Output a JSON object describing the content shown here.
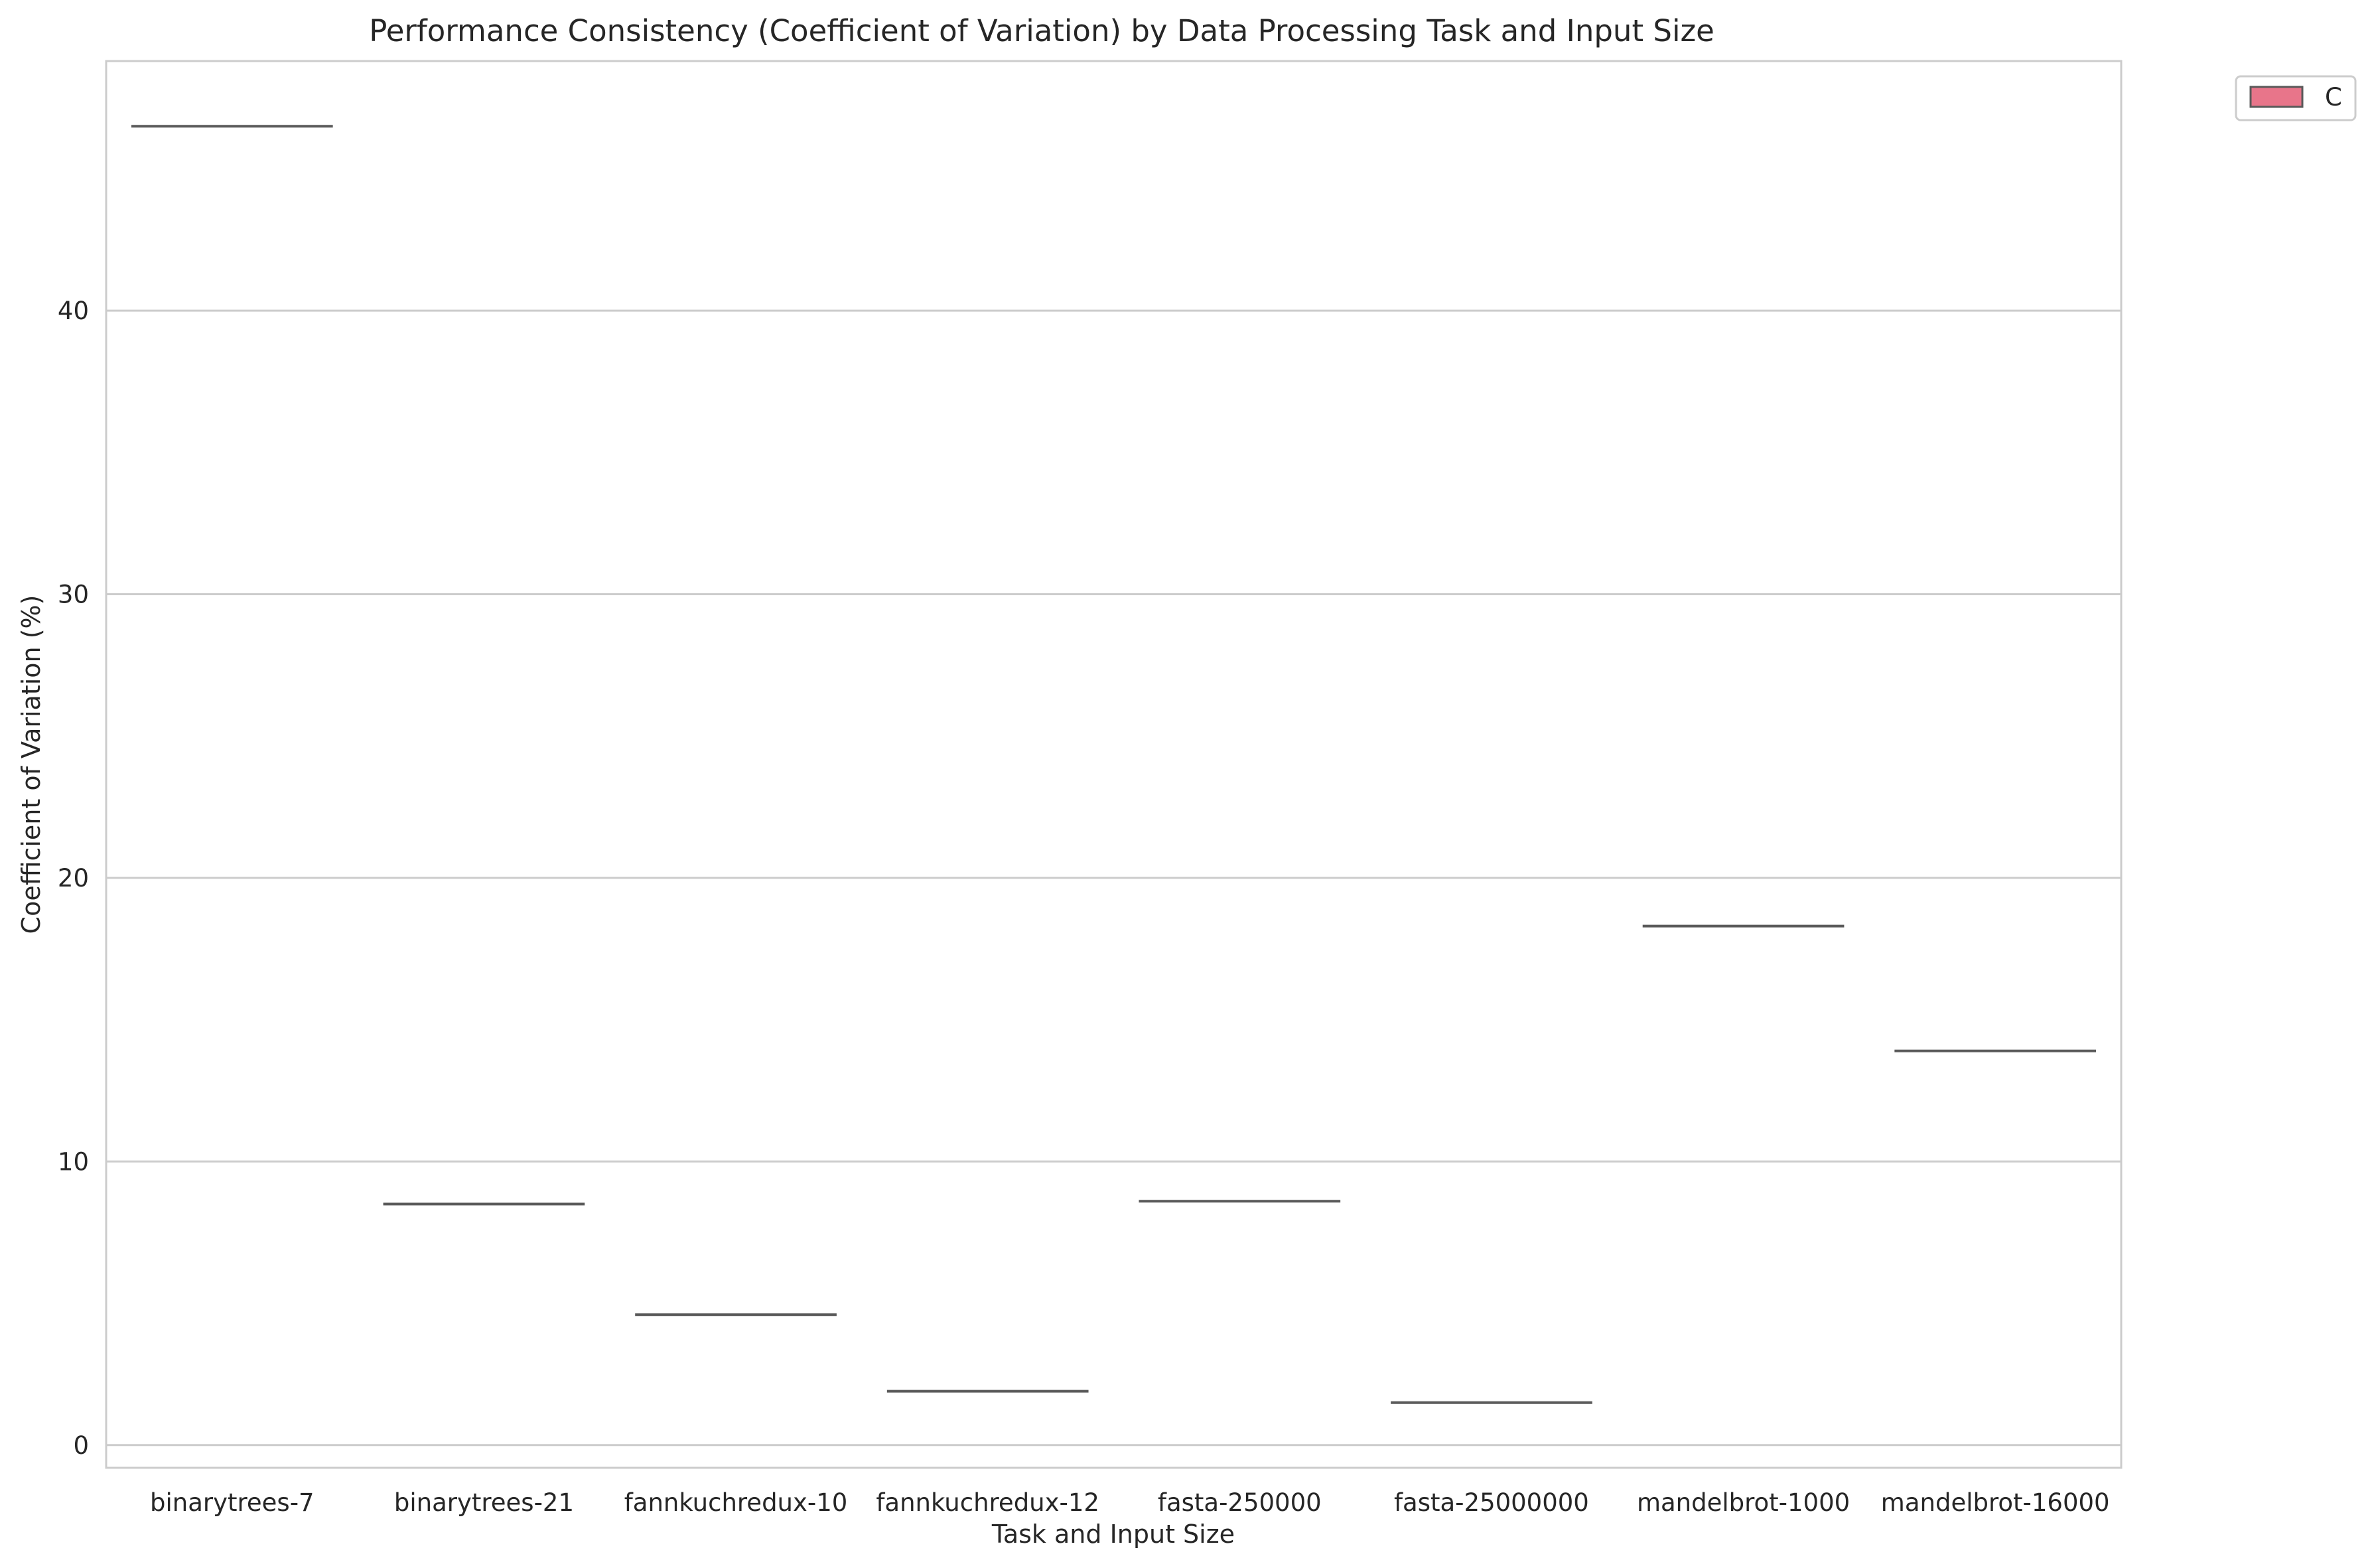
{
  "chart_data": {
    "type": "bar",
    "title": "Performance Consistency (Coefficient of Variation) by Data Processing Task and Input Size",
    "xlabel": "Task and Input Size",
    "ylabel": "Coefficient of Variation (%)",
    "categories": [
      "binarytrees-7",
      "binarytrees-21",
      "fannkuchredux-10",
      "fannkuchredux-12",
      "fasta-250000",
      "fasta-25000000",
      "mandelbrot-1000",
      "mandelbrot-16000"
    ],
    "series": [
      {
        "name": "C",
        "values": [
          46.5,
          8.5,
          4.6,
          1.9,
          8.6,
          1.5,
          18.3,
          13.9
        ]
      }
    ],
    "yticks": [
      0,
      10,
      20,
      30,
      40
    ],
    "ylim": [
      -0.8,
      48.8
    ],
    "grid": true,
    "legend_position": "upper right, outside plot",
    "colors": {
      "series_fill": "#e8758a",
      "median_line": "#5a5a5a",
      "grid": "#cccccc",
      "spine": "#cccccc",
      "text": "#262626"
    }
  }
}
